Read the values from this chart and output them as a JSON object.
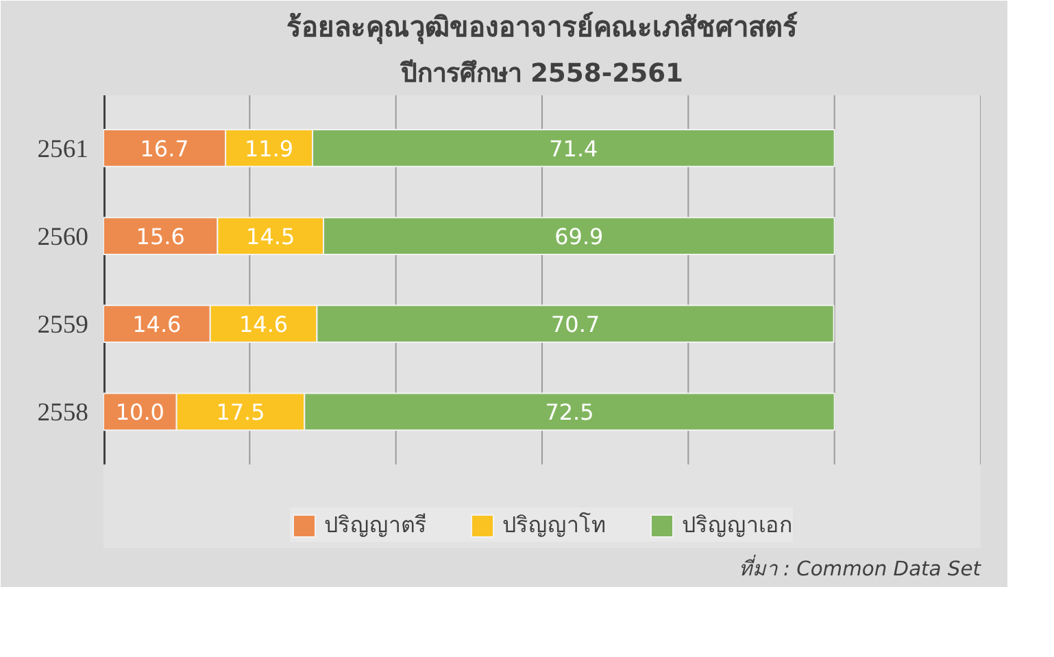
{
  "chart_data": {
    "type": "bar",
    "orientation": "horizontal",
    "stacked": true,
    "title": "ร้อยละคุณวุฒิของอาจารย์คณะเภสัชศาสตร์",
    "subtitle": "ปีการศึกษา 2558-2561",
    "categories": [
      "2561",
      "2560",
      "2559",
      "2558"
    ],
    "series": [
      {
        "name": "ปริญญาตรี",
        "color": "#ed8b4e",
        "values": [
          16.7,
          15.6,
          14.6,
          10.0
        ],
        "value_labels": [
          "16.7",
          "15.6",
          "14.6",
          "10.0"
        ]
      },
      {
        "name": "ปริญญาโท",
        "color": "#fbc322",
        "values": [
          11.9,
          14.5,
          14.6,
          17.5
        ],
        "value_labels": [
          "11.9",
          "14.5",
          "14.6",
          "17.5"
        ]
      },
      {
        "name": "ปริญญาเอก",
        "color": "#80b55e",
        "values": [
          71.4,
          69.9,
          70.7,
          72.5
        ],
        "value_labels": [
          "71.4",
          "69.9",
          "70.7",
          "72.5"
        ]
      }
    ],
    "xlim": [
      0,
      120
    ],
    "xticks": [
      {
        "value": 0,
        "label": null
      },
      {
        "value": 20,
        "label": null
      },
      {
        "value": 40,
        "label": null
      },
      {
        "value": 60,
        "label": null
      },
      {
        "value": 80,
        "label": null
      },
      {
        "value": 100,
        "label": null
      },
      {
        "value": 120,
        "label": null
      }
    ],
    "tick_labels": "y",
    "grid": "x",
    "legend": "bottom",
    "annotations": [
      "ที่มา : Common Data Set"
    ]
  }
}
